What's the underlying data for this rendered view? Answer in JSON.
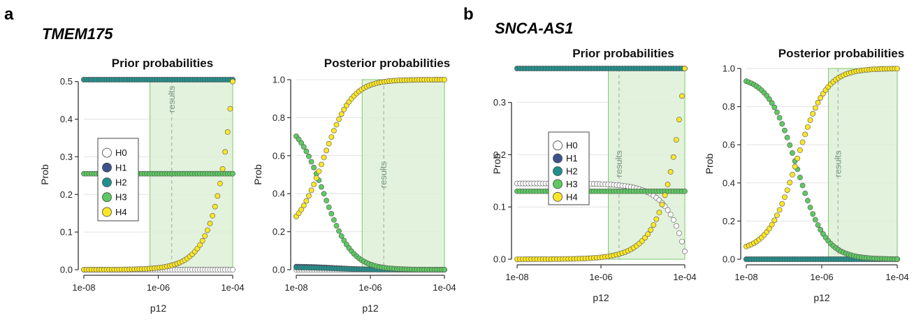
{
  "figure": {
    "label_a": "a",
    "label_b": "b",
    "gene_a": "TMEM175",
    "gene_b": "SNCA-AS1"
  },
  "colors": {
    "H0": "#ffffff",
    "H1": "#3b528b",
    "H2": "#21908d",
    "H3": "#5ec962",
    "H4": "#fde725",
    "region_fill": "#dcefd5",
    "region_stroke": "#7ac96a",
    "dashed": "#a5b5a5"
  },
  "chart_data": [
    {
      "type": "scatter",
      "title": "Prior probabilities",
      "xlabel": "p12",
      "ylabel": "Prob",
      "x_scale": "log",
      "xlim": [
        1e-08,
        0.0001
      ],
      "ylim": [
        0,
        0.5
      ],
      "xticks": [
        "1e-08",
        "1e-06",
        "1e-04"
      ],
      "yticks": [
        "0.0",
        "0.1",
        "0.2",
        "0.3",
        "0.4",
        "0.5"
      ],
      "region": {
        "x_from": 6e-07,
        "x_to": 0.0001,
        "x_line": 2.3e-06,
        "label": "results"
      },
      "legend": {
        "placement": "left",
        "entries": [
          "H0",
          "H1",
          "H2",
          "H3",
          "H4"
        ]
      },
      "series_spec": [
        {
          "name": "H0",
          "kind": "const",
          "value": 0
        },
        {
          "name": "H1",
          "kind": "const",
          "value": 0.505
        },
        {
          "name": "H2",
          "kind": "const",
          "value": 0.505
        },
        {
          "name": "H3",
          "kind": "const",
          "value": 0.255
        },
        {
          "name": "H4",
          "kind": "linear",
          "slope": 5000,
          "cap": 0.505
        }
      ]
    },
    {
      "type": "scatter",
      "title": "Posterior probabilities",
      "xlabel": "p12",
      "ylabel": "Prob",
      "x_scale": "log",
      "xlim": [
        1e-08,
        0.0001
      ],
      "ylim": [
        0,
        1
      ],
      "xticks": [
        "1e-08",
        "1e-06",
        "1e-04"
      ],
      "yticks": [
        "0.0",
        "0.2",
        "0.4",
        "0.6",
        "0.8",
        "1.0"
      ],
      "region": {
        "x_from": 6e-07,
        "x_to": 0.0001,
        "x_line": 2.3e-06,
        "label": "results"
      },
      "legend": null,
      "series_spec": [
        {
          "name": "H0",
          "kind": "const",
          "value": 0
        },
        {
          "name": "H1",
          "kind": "decay",
          "value": 0.018,
          "r": 1.2e-07
        },
        {
          "name": "H2",
          "kind": "decay",
          "value": 0.012,
          "r": 1.2e-07
        },
        {
          "name": "H3",
          "kind": "logistic",
          "from": 0.8,
          "to": 0,
          "mid": 5.56e-08
        },
        {
          "name": "H4",
          "kind": "logistic",
          "from": 0.18,
          "to": 1,
          "mid": 5.56e-08
        }
      ]
    },
    {
      "type": "scatter",
      "title": "Prior probabilities",
      "xlabel": "p12",
      "ylabel": "Prob",
      "x_scale": "log",
      "xlim": [
        1e-08,
        0.0001
      ],
      "ylim": [
        0,
        0.3
      ],
      "xticks": [
        "1e-08",
        "1e-06",
        "1e-04"
      ],
      "yticks": [
        "0.0",
        "0.1",
        "0.2",
        "0.3"
      ],
      "region": {
        "x_from": 1.5e-06,
        "x_to": 0.0001,
        "x_line": 2.7e-06,
        "label": "results"
      },
      "legend": {
        "placement": "center",
        "entries": [
          "H0",
          "H1",
          "H2",
          "H3",
          "H4"
        ]
      },
      "series_spec": [
        {
          "name": "H0",
          "kind": "linear_down",
          "value": 0.145,
          "slope": 1300
        },
        {
          "name": "H1",
          "kind": "const",
          "value": 0.365
        },
        {
          "name": "H2",
          "kind": "const",
          "value": 0.365
        },
        {
          "name": "H3",
          "kind": "const",
          "value": 0.13
        },
        {
          "name": "H4",
          "kind": "linear",
          "slope": 3650,
          "cap": 0.365
        }
      ]
    },
    {
      "type": "scatter",
      "title": "Posterior probabilities",
      "xlabel": "p12",
      "ylabel": "Prob",
      "x_scale": "log",
      "xlim": [
        1e-08,
        0.0001
      ],
      "ylim": [
        0,
        1
      ],
      "xticks": [
        "1e-08",
        "1e-06",
        "1e-04"
      ],
      "yticks": [
        "0.0",
        "0.2",
        "0.4",
        "0.6",
        "0.8",
        "1.0"
      ],
      "region": {
        "x_from": 1.5e-06,
        "x_to": 0.0001,
        "x_line": 2.7e-06,
        "label": "results"
      },
      "legend": null,
      "series_spec": [
        {
          "name": "H0",
          "kind": "const",
          "value": 0
        },
        {
          "name": "H1",
          "kind": "const",
          "value": 0
        },
        {
          "name": "H2",
          "kind": "const",
          "value": 0
        },
        {
          "name": "H3",
          "kind": "logistic",
          "from": 0.96,
          "to": 0,
          "mid": 2.2e-07
        },
        {
          "name": "H4",
          "kind": "logistic",
          "from": 0.04,
          "to": 1,
          "mid": 2.2e-07
        }
      ]
    }
  ]
}
